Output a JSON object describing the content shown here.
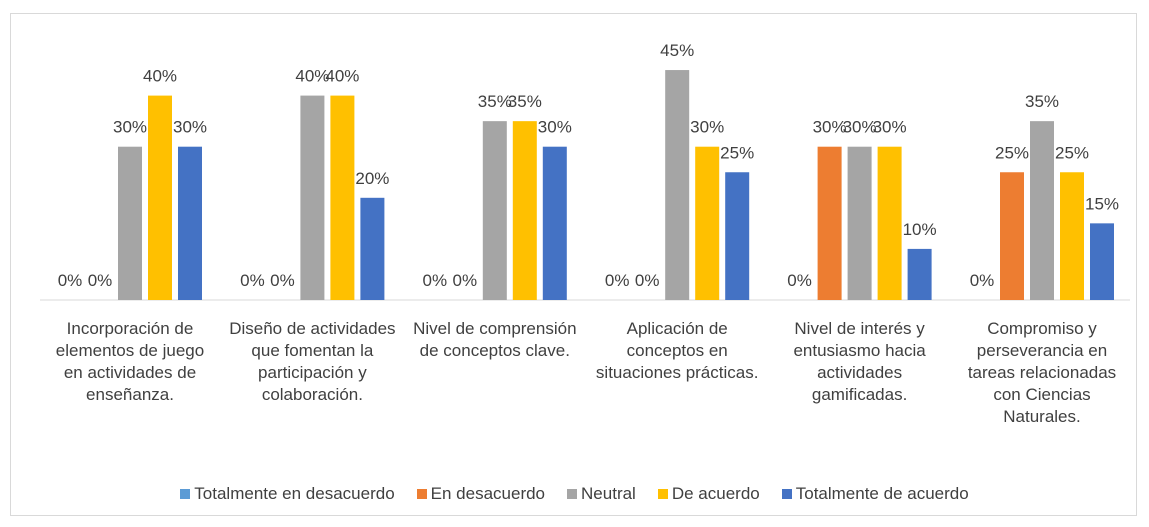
{
  "chart_data": {
    "type": "bar",
    "categories": [
      "Incorporación de elementos de juego en actividades de enseñanza.",
      "Diseño de actividades que fomentan la participación y colaboración.",
      "Nivel de comprensión de conceptos clave.",
      "Aplicación de conceptos en situaciones prácticas.",
      "Nivel de interés y entusiasmo hacia actividades gamificadas.",
      "Compromiso y perseverancia en tareas relacionadas con Ciencias Naturales."
    ],
    "series": [
      {
        "name": "Totalmente en desacuerdo",
        "color": "#5b9bd5",
        "values": [
          0,
          0,
          0,
          0,
          0,
          0
        ],
        "value_labels": [
          "0%",
          "0%",
          "0%",
          "0%",
          "0%",
          "0%"
        ]
      },
      {
        "name": "En desacuerdo",
        "color": "#ed7d31",
        "values": [
          0,
          0,
          0,
          0,
          30,
          25
        ],
        "value_labels": [
          "0%",
          "0%",
          "0%",
          "0%",
          "30%",
          "25%"
        ]
      },
      {
        "name": "Neutral",
        "color": "#a5a5a5",
        "values": [
          30,
          40,
          35,
          45,
          30,
          35
        ],
        "value_labels": [
          "30%",
          "40%",
          "35%",
          "45%",
          "30%",
          "35%"
        ]
      },
      {
        "name": "De acuerdo",
        "color": "#ffc000",
        "values": [
          40,
          40,
          35,
          30,
          30,
          25
        ],
        "value_labels": [
          "40%",
          "40%",
          "35%",
          "30%",
          "30%",
          "25%"
        ]
      },
      {
        "name": "Totalmente de acuerdo",
        "color": "#4472c4",
        "values": [
          30,
          20,
          30,
          25,
          10,
          15
        ],
        "value_labels": [
          "30%",
          "20%",
          "30%",
          "25%",
          "10%",
          "15%"
        ]
      }
    ],
    "legend": "bottom"
  }
}
